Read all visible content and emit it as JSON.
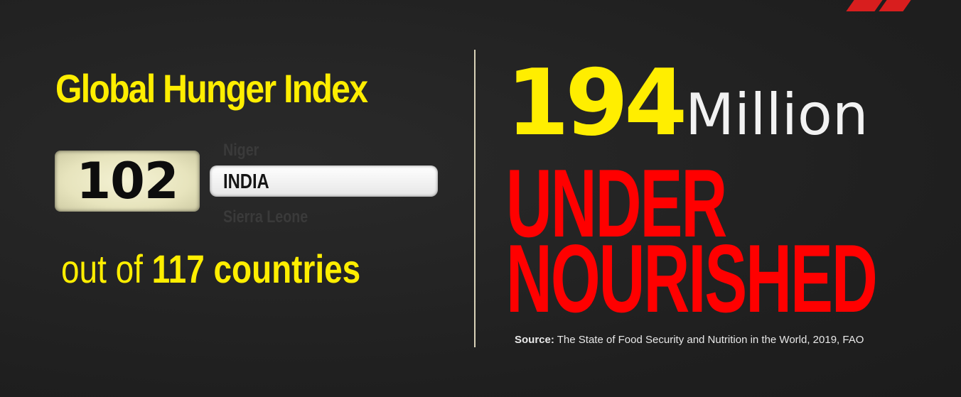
{
  "left_panel": {
    "title": "Global Hunger Index",
    "rank": "102",
    "country_above": "Niger",
    "country": "INDIA",
    "country_below": "Sierra Leone",
    "out_of_prefix": "out of",
    "out_of_number": "117 countries"
  },
  "right_panel": {
    "figure": "194",
    "figure_unit": "Million",
    "headline_line1": "UNDER",
    "headline_line2": "NOURISHED",
    "source_label": "Source:",
    "source_text": "The State of Food Security and Nutrition in the World, 2019, FAO"
  },
  "colors": {
    "background": "#212121",
    "yellow": "#ffee00",
    "red": "#ff0000",
    "white": "#f2f2f2"
  }
}
